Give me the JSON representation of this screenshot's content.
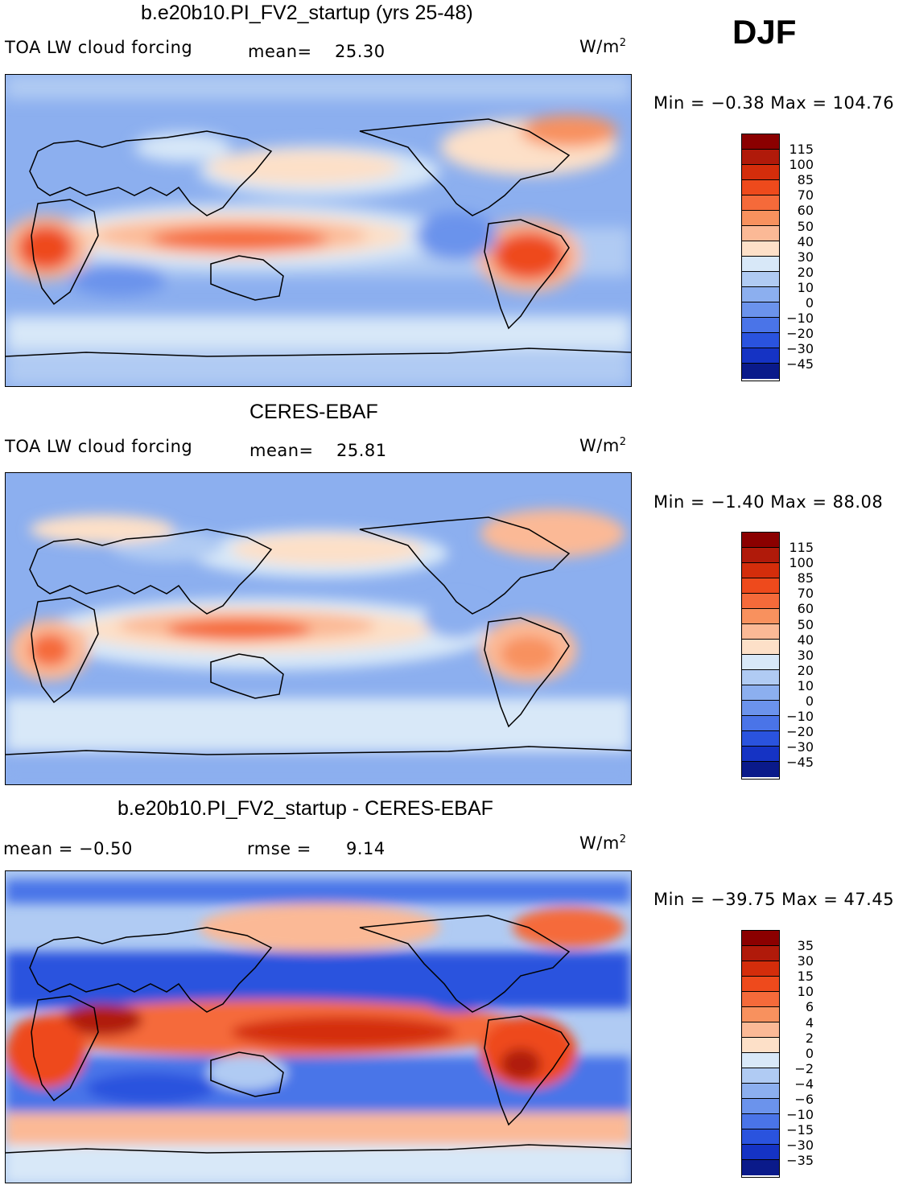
{
  "season": "DJF",
  "panels": [
    {
      "title": "b.e20b10.PI_FV2_startup (yrs 25-48)",
      "left_label": "TOA LW cloud forcing",
      "stat_label": "mean=",
      "stat_value": "25.30",
      "units_base": "W/m",
      "units_exp": "2",
      "minmax": "Min =   −0.38 Max =  104.76",
      "colorbar": {
        "ticks": [
          "115",
          "100",
          "85",
          "70",
          "60",
          "50",
          "40",
          "30",
          "20",
          "10",
          "0",
          "−10",
          "−20",
          "−30",
          "−45"
        ],
        "colors": [
          "#8b0000",
          "#b01a0a",
          "#d42d0b",
          "#ee4a1c",
          "#f56a3a",
          "#f8915e",
          "#fbb996",
          "#fde0c8",
          "#d8e8f8",
          "#b0cbf3",
          "#8cafef",
          "#6b93ec",
          "#4a74e8",
          "#2a53de",
          "#1533c4",
          "#0a1a8a"
        ]
      }
    },
    {
      "title": "CERES-EBAF",
      "left_label": "TOA LW cloud forcing",
      "stat_label": "mean=",
      "stat_value": "25.81",
      "units_base": "W/m",
      "units_exp": "2",
      "minmax": "Min =   −1.40 Max =   88.08",
      "colorbar": {
        "ticks": [
          "115",
          "100",
          "85",
          "70",
          "60",
          "50",
          "40",
          "30",
          "20",
          "10",
          "0",
          "−10",
          "−20",
          "−30",
          "−45"
        ],
        "colors": [
          "#8b0000",
          "#b01a0a",
          "#d42d0b",
          "#ee4a1c",
          "#f56a3a",
          "#f8915e",
          "#fbb996",
          "#fde0c8",
          "#d8e8f8",
          "#b0cbf3",
          "#8cafef",
          "#6b93ec",
          "#4a74e8",
          "#2a53de",
          "#1533c4",
          "#0a1a8a"
        ]
      }
    },
    {
      "title": "b.e20b10.PI_FV2_startup - CERES-EBAF",
      "left_label": "mean =   −0.50",
      "stat_label": "rmse =",
      "stat_value": "9.14",
      "units_base": "W/m",
      "units_exp": "2",
      "minmax": "Min = −39.75 Max =   47.45",
      "colorbar": {
        "ticks": [
          "35",
          "30",
          "15",
          "10",
          "6",
          "4",
          "2",
          "0",
          "−2",
          "−4",
          "−6",
          "−10",
          "−15",
          "−30",
          "−35"
        ],
        "colors": [
          "#8b0000",
          "#b01a0a",
          "#d42d0b",
          "#ee4a1c",
          "#f56a3a",
          "#f8915e",
          "#fbb996",
          "#fde0c8",
          "#d8e8f8",
          "#b0cbf3",
          "#8cafef",
          "#6b93ec",
          "#4a74e8",
          "#2a53de",
          "#1533c4",
          "#0a1a8a"
        ]
      }
    }
  ]
}
